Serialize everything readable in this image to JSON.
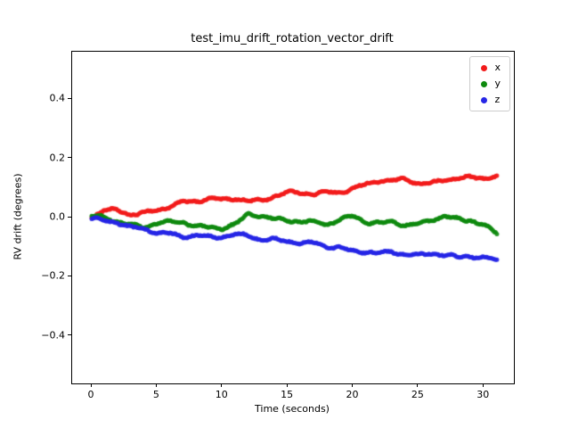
{
  "figure": {
    "title": "test_imu_drift_rotation_vector_drift",
    "xlabel": "Time (seconds)",
    "ylabel": "RV drift (degrees)"
  },
  "chart_data": {
    "type": "scatter",
    "title": "test_imu_drift_rotation_vector_drift",
    "xlabel": "Time (seconds)",
    "ylabel": "RV drift (degrees)",
    "xlim": [
      -1.5,
      32.3
    ],
    "ylim": [
      -0.56,
      0.56
    ],
    "grid": false,
    "legend_position": "upper right",
    "xticks": [
      0,
      5,
      10,
      15,
      20,
      25,
      30
    ],
    "xtick_labels": [
      "0",
      "5",
      "10",
      "15",
      "20",
      "25",
      "30"
    ],
    "yticks": [
      -0.4,
      -0.2,
      0.0,
      0.2,
      0.4
    ],
    "ytick_labels": [
      "−0.4",
      "−0.2",
      "0.0",
      "0.2",
      "0.4"
    ],
    "x": [
      0,
      1,
      2,
      3,
      4,
      5,
      6,
      7,
      8,
      9,
      10,
      11,
      12,
      13,
      14,
      15,
      16,
      17,
      18,
      19,
      20,
      21,
      22,
      23,
      24,
      25,
      26,
      27,
      28,
      29,
      30,
      31
    ],
    "series": [
      {
        "name": "x",
        "color": "#f21b1b",
        "values": [
          0.0,
          0.02,
          0.02,
          0.01,
          0.02,
          0.03,
          0.04,
          0.05,
          0.05,
          0.06,
          0.06,
          0.07,
          0.06,
          0.06,
          0.07,
          0.08,
          0.08,
          0.08,
          0.09,
          0.09,
          0.1,
          0.11,
          0.12,
          0.12,
          0.13,
          0.12,
          0.12,
          0.13,
          0.13,
          0.13,
          0.13,
          0.14
        ]
      },
      {
        "name": "y",
        "color": "#0e8a0e",
        "values": [
          0.0,
          0.0,
          -0.01,
          -0.02,
          -0.03,
          -0.02,
          -0.02,
          -0.02,
          -0.03,
          -0.03,
          -0.03,
          -0.02,
          0.01,
          0.0,
          -0.01,
          -0.01,
          -0.01,
          -0.01,
          -0.02,
          -0.01,
          0.0,
          -0.02,
          -0.02,
          -0.01,
          -0.02,
          -0.02,
          -0.01,
          0.0,
          -0.01,
          -0.01,
          -0.02,
          -0.05
        ]
      },
      {
        "name": "z",
        "color": "#2626e6",
        "values": [
          0.0,
          -0.01,
          -0.02,
          -0.04,
          -0.04,
          -0.05,
          -0.05,
          -0.06,
          -0.06,
          -0.07,
          -0.07,
          -0.06,
          -0.06,
          -0.07,
          -0.07,
          -0.08,
          -0.09,
          -0.09,
          -0.1,
          -0.1,
          -0.11,
          -0.11,
          -0.12,
          -0.12,
          -0.13,
          -0.13,
          -0.12,
          -0.12,
          -0.13,
          -0.13,
          -0.14,
          -0.15
        ]
      }
    ]
  }
}
